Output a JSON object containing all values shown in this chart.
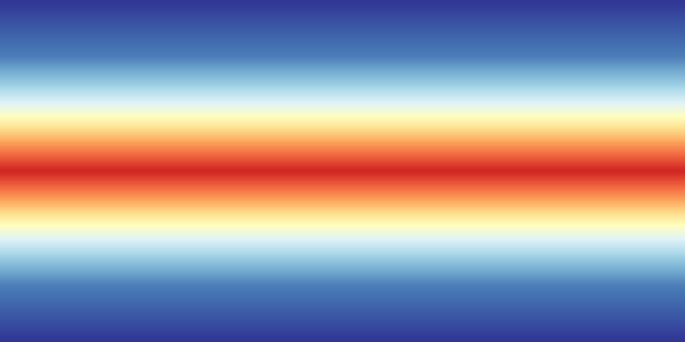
{
  "title": "",
  "background_color": "#b0b8c0",
  "ocean_color": "#b0b8c0",
  "colormap": "RdYlBu_r",
  "figsize": [
    6.85,
    3.42
  ],
  "dpi": 100,
  "xlim": [
    -180,
    180
  ],
  "ylim": [
    -90,
    90
  ],
  "gradient_stops": [
    [
      -90,
      0.0
    ],
    [
      -60,
      0.12
    ],
    [
      -45,
      0.28
    ],
    [
      -30,
      0.48
    ],
    [
      -15,
      0.72
    ],
    [
      0,
      0.92
    ],
    [
      15,
      0.72
    ],
    [
      30,
      0.48
    ],
    [
      45,
      0.28
    ],
    [
      60,
      0.12
    ],
    [
      90,
      0.0
    ]
  ],
  "country_border_color": "#ffffff",
  "country_border_lw": 0.4,
  "coast_color": "#ffffff",
  "coast_lw": 0.5
}
